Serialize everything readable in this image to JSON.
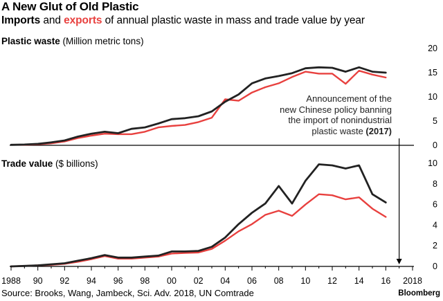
{
  "header": {
    "title": "A New Glut of Old Plastic",
    "subtitle_part1": "Imports",
    "subtitle_part2": " and ",
    "subtitle_part3": "exports",
    "subtitle_part4": " of annual plastic waste in mass and trade value by year"
  },
  "colors": {
    "imports": "#222222",
    "exports": "#e8403e",
    "axis": "#000000"
  },
  "annotation": {
    "line1": "Announcement of the",
    "line2": "new Chinese policy banning",
    "line3": "the import of nonindustrial",
    "line4": "plastic waste ",
    "line4_bold": "(2017)"
  },
  "footer": {
    "source": "Source: Brooks, Wang, Jambeck, Sci. Adv. 2018, UN Comtrade",
    "brand": "Bloomberg"
  },
  "chart_data": [
    {
      "type": "line",
      "title_bold": "Plastic waste",
      "title_rest": " (Million metric tons)",
      "xlim": [
        1988,
        2018
      ],
      "ylim": [
        0,
        20
      ],
      "yticks": [
        "0",
        "5",
        "10",
        "15",
        "20"
      ],
      "x": [
        1988,
        1989,
        1990,
        1991,
        1992,
        1993,
        1994,
        1995,
        1996,
        1997,
        1998,
        1999,
        2000,
        2001,
        2002,
        2003,
        2004,
        2005,
        2006,
        2007,
        2008,
        2009,
        2010,
        2011,
        2012,
        2013,
        2014,
        2015,
        2016
      ],
      "series": [
        {
          "name": "Imports",
          "color": "#222222",
          "values": [
            0.1,
            0.15,
            0.3,
            0.6,
            1.0,
            1.8,
            2.4,
            2.8,
            2.5,
            3.4,
            3.7,
            4.5,
            5.4,
            5.6,
            6.0,
            7.0,
            9.0,
            10.5,
            12.8,
            13.8,
            14.3,
            14.9,
            15.9,
            16.1,
            16.0,
            15.2,
            16.1,
            15.2,
            15.0
          ]
        },
        {
          "name": "Exports",
          "color": "#e8403e",
          "values": [
            0.1,
            0.1,
            0.2,
            0.4,
            0.8,
            1.5,
            2.0,
            2.4,
            2.3,
            2.3,
            2.8,
            3.7,
            4.0,
            4.2,
            4.8,
            5.7,
            9.5,
            9.2,
            10.9,
            12.0,
            12.8,
            14.1,
            15.2,
            14.8,
            14.8,
            12.7,
            15.4,
            14.6,
            14.0
          ]
        }
      ]
    },
    {
      "type": "line",
      "title_bold": "Trade value",
      "title_rest": " ($ billions)",
      "xlim": [
        1988,
        2018
      ],
      "ylim": [
        0,
        10
      ],
      "yticks": [
        "0",
        "2",
        "4",
        "6",
        "8",
        "10"
      ],
      "x": [
        1988,
        1989,
        1990,
        1991,
        1992,
        1993,
        1994,
        1995,
        1996,
        1997,
        1998,
        1999,
        2000,
        2001,
        2002,
        2003,
        2004,
        2005,
        2006,
        2007,
        2008,
        2009,
        2010,
        2011,
        2012,
        2013,
        2014,
        2015,
        2016
      ],
      "series": [
        {
          "name": "Imports",
          "color": "#222222",
          "values": [
            0.0,
            0.05,
            0.1,
            0.2,
            0.3,
            0.55,
            0.8,
            1.1,
            0.85,
            0.85,
            0.95,
            1.05,
            1.45,
            1.45,
            1.5,
            1.9,
            2.8,
            4.1,
            5.2,
            6.1,
            7.8,
            6.1,
            8.3,
            9.9,
            9.8,
            9.5,
            9.8,
            7.0,
            6.2
          ]
        },
        {
          "name": "Exports",
          "color": "#e8403e",
          "values": [
            0.0,
            0.05,
            0.1,
            0.15,
            0.25,
            0.45,
            0.7,
            1.0,
            0.75,
            0.75,
            0.85,
            0.95,
            1.25,
            1.3,
            1.35,
            1.7,
            2.5,
            3.4,
            4.1,
            5.0,
            5.4,
            4.9,
            6.0,
            7.0,
            6.9,
            6.5,
            6.7,
            5.6,
            4.8
          ]
        }
      ]
    }
  ],
  "x_axis": {
    "ticks": [
      {
        "year": 1988,
        "label": "1988"
      },
      {
        "year": 1990,
        "label": "90"
      },
      {
        "year": 1992,
        "label": "92"
      },
      {
        "year": 1994,
        "label": "94"
      },
      {
        "year": 1996,
        "label": "96"
      },
      {
        "year": 1998,
        "label": "98"
      },
      {
        "year": 2000,
        "label": "00"
      },
      {
        "year": 2002,
        "label": "02"
      },
      {
        "year": 2004,
        "label": "04"
      },
      {
        "year": 2006,
        "label": "06"
      },
      {
        "year": 2008,
        "label": "08"
      },
      {
        "year": 2010,
        "label": "10"
      },
      {
        "year": 2012,
        "label": "12"
      },
      {
        "year": 2014,
        "label": "14"
      },
      {
        "year": 2016,
        "label": "16"
      },
      {
        "year": 2018,
        "label": "2018"
      }
    ],
    "policy_year": 2017
  }
}
